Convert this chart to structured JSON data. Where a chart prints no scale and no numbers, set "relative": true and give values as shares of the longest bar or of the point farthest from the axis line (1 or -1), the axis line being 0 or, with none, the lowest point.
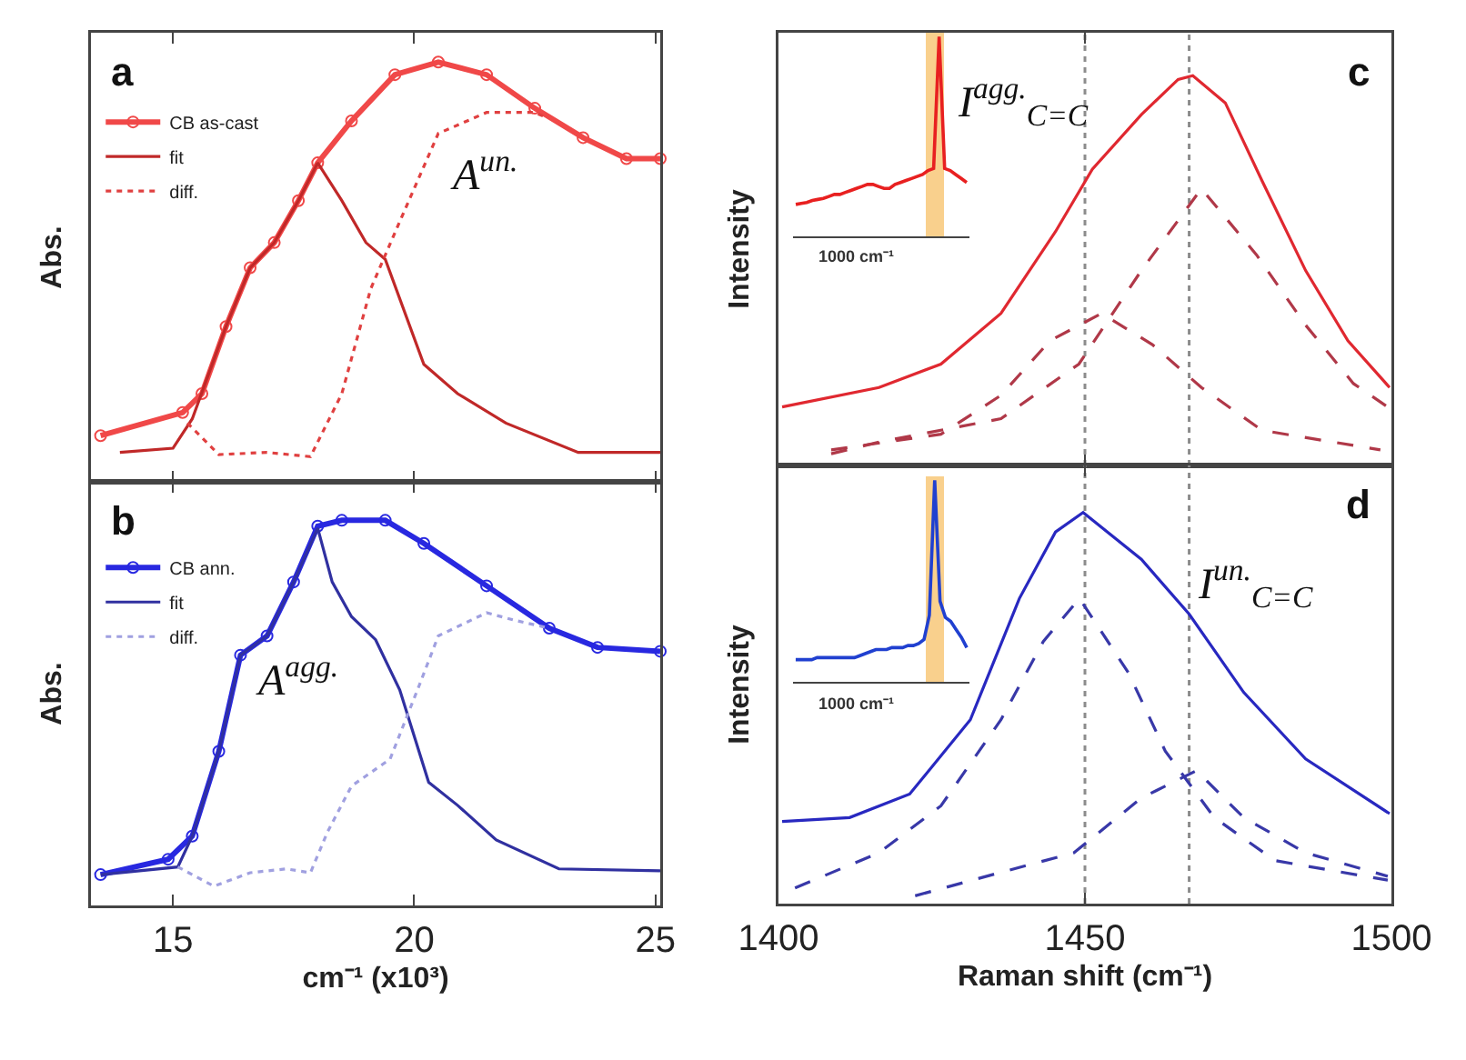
{
  "chart_data": [
    {
      "type": "line",
      "relative": true,
      "ylabel": "Abs.",
      "xlim": [
        13.3,
        25.1
      ],
      "xticks": [
        15,
        20,
        25
      ],
      "tick_labels": false,
      "legend": "top left",
      "annotations": [
        "a",
        "A$^{un.}$"
      ],
      "series": [
        {
          "name": "CB as-cast",
          "color": "#f04848",
          "marker": "circle",
          "line_style": "solid",
          "x": [
            13.5,
            15.2,
            15.6,
            16.1,
            16.6,
            17.1,
            17.6,
            18.0,
            18.7,
            19.6,
            20.5,
            21.5,
            22.5,
            23.5,
            24.4,
            25.1
          ],
          "values": [
            0.11,
            0.165,
            0.21,
            0.37,
            0.51,
            0.57,
            0.67,
            0.76,
            0.86,
            0.97,
            1.0,
            0.97,
            0.89,
            0.82,
            0.77,
            0.77
          ]
        },
        {
          "name": "fit",
          "color": "#c02828",
          "marker": "none",
          "line_style": "solid",
          "x": [
            13.9,
            15.0,
            15.4,
            16.1,
            16.6,
            17.1,
            17.6,
            18.0,
            18.5,
            19.0,
            19.4,
            20.2,
            20.9,
            21.9,
            23.4,
            25.1
          ],
          "values": [
            0.07,
            0.08,
            0.15,
            0.37,
            0.51,
            0.57,
            0.67,
            0.76,
            0.67,
            0.57,
            0.53,
            0.28,
            0.21,
            0.14,
            0.07,
            0.07
          ]
        },
        {
          "name": "diff.",
          "color": "#e04040",
          "marker": "none",
          "line_style": "dotted",
          "x": [
            15.3,
            15.95,
            16.95,
            17.85,
            18.5,
            19.1,
            19.7,
            20.5,
            21.5,
            22.5,
            22.7
          ],
          "values": [
            0.14,
            0.065,
            0.07,
            0.06,
            0.21,
            0.46,
            0.62,
            0.83,
            0.88,
            0.88,
            0.87
          ]
        }
      ]
    },
    {
      "type": "line",
      "relative": true,
      "ylabel": "Abs.",
      "xlabel": "cm⁻¹ (x10³)",
      "xlim": [
        13.3,
        25.1
      ],
      "xticks": [
        15,
        20,
        25
      ],
      "tick_labels": "x",
      "legend": "top left",
      "annotations": [
        "b",
        "A$^{agg.}$"
      ],
      "series": [
        {
          "name": "CB ann.",
          "color": "#2828e0",
          "marker": "circle",
          "line_style": "solid",
          "x": [
            13.5,
            14.9,
            15.4,
            15.95,
            16.4,
            16.95,
            17.5,
            18.0,
            18.5,
            19.4,
            20.2,
            21.5,
            22.8,
            23.8,
            25.1
          ],
          "values": [
            0.08,
            0.12,
            0.18,
            0.4,
            0.65,
            0.7,
            0.84,
            0.985,
            1.0,
            1.0,
            0.94,
            0.83,
            0.72,
            0.67,
            0.66
          ]
        },
        {
          "name": "fit",
          "color": "#3030a0",
          "marker": "none",
          "line_style": "solid",
          "x": [
            13.5,
            15.1,
            15.4,
            15.95,
            16.4,
            16.95,
            17.5,
            18.0,
            18.3,
            18.7,
            19.2,
            19.7,
            20.3,
            20.9,
            21.7,
            23.0,
            25.1
          ],
          "values": [
            0.08,
            0.1,
            0.18,
            0.4,
            0.65,
            0.7,
            0.84,
            0.98,
            0.84,
            0.75,
            0.69,
            0.56,
            0.32,
            0.26,
            0.17,
            0.095,
            0.09
          ]
        },
        {
          "name": "diff.",
          "color": "#a0a0e0",
          "marker": "none",
          "line_style": "dotted",
          "x": [
            15.1,
            15.85,
            16.6,
            17.35,
            17.85,
            18.2,
            18.7,
            19.5,
            20.1,
            20.5,
            21.5,
            22.1,
            22.8
          ],
          "values": [
            0.1,
            0.05,
            0.085,
            0.095,
            0.085,
            0.19,
            0.31,
            0.38,
            0.57,
            0.7,
            0.76,
            0.74,
            0.72
          ]
        }
      ]
    },
    {
      "type": "line",
      "relative": true,
      "ylabel": "Intensity",
      "xlim": [
        1400,
        1500
      ],
      "xticks": [
        1400,
        1450,
        1500
      ],
      "tick_labels": false,
      "annotations": [
        "c",
        "I$^{agg.}$$_{C=C}$"
      ],
      "ref_lines": [
        {
          "axis": "x",
          "value": 1450,
          "color": "#8c8c8c",
          "line_style": "dotted"
        },
        {
          "axis": "x",
          "value": 1467,
          "color": "#8c8c8c",
          "line_style": "dotted"
        }
      ],
      "series": [
        {
          "color": "#e02830",
          "line_style": "solid",
          "x": [
            1400.6,
            1416.4,
            1426.5,
            1436.3,
            1445.2,
            1451.2,
            1459.2,
            1465.2,
            1467.6,
            1472.9,
            1478.9,
            1486.0,
            1492.9,
            1499.7
          ],
          "values": [
            0.15,
            0.2,
            0.26,
            0.39,
            0.6,
            0.76,
            0.9,
            0.99,
            1.0,
            0.93,
            0.73,
            0.5,
            0.32,
            0.2
          ]
        },
        {
          "color": "#b03848",
          "line_style": "dashed",
          "x": [
            1408.6,
            1426.5,
            1436.3,
            1444.3,
            1452.7,
            1461,
            1469,
            1478.9,
            1498.2
          ],
          "values": [
            0.04,
            0.08,
            0.18,
            0.32,
            0.39,
            0.31,
            0.2,
            0.09,
            0.04
          ]
        },
        {
          "color": "#b03848",
          "line_style": "dashed",
          "x": [
            1408.6,
            1416.4,
            1436.3,
            1449,
            1459.2,
            1469,
            1478,
            1486,
            1493.8,
            1499.4
          ],
          "values": [
            0.03,
            0.06,
            0.12,
            0.26,
            0.5,
            0.71,
            0.54,
            0.36,
            0.21,
            0.15
          ]
        }
      ]
    },
    {
      "type": "line",
      "relative": true,
      "tick_labels": false,
      "annotations": [
        "1000 cm⁻¹"
      ],
      "categories": [
        null,
        null,
        null,
        null,
        null,
        null,
        null,
        null,
        null,
        null,
        null,
        null,
        null,
        null,
        null,
        null,
        null,
        null,
        null,
        null,
        null,
        null,
        null,
        null,
        null,
        null,
        null,
        null,
        null,
        null,
        null,
        null
      ],
      "series": [
        {
          "color": "#e82020",
          "line_style": "solid",
          "values": [
            0.16,
            0.165,
            0.17,
            0.18,
            0.185,
            0.19,
            0.2,
            0.21,
            0.21,
            0.22,
            0.23,
            0.24,
            0.25,
            0.26,
            0.26,
            0.25,
            0.24,
            0.24,
            0.26,
            0.27,
            0.28,
            0.29,
            0.3,
            0.31,
            0.33,
            0.34,
            1.0,
            0.34,
            0.33,
            0.31,
            0.29,
            0.27
          ]
        }
      ]
    },
    {
      "type": "line",
      "relative": true,
      "ylabel": "Intensity",
      "xlabel": "Raman shift (cm⁻¹)",
      "xlim": [
        1400,
        1500
      ],
      "xticks": [
        1400,
        1450,
        1500
      ],
      "tick_labels": "x",
      "annotations": [
        "d",
        "I$^{un.}$$_{C=C}$"
      ],
      "ref_lines": [
        {
          "axis": "x",
          "value": 1450,
          "color": "#8c8c8c",
          "line_style": "dotted"
        },
        {
          "axis": "x",
          "value": 1467,
          "color": "#8c8c8c",
          "line_style": "dotted"
        }
      ],
      "series": [
        {
          "color": "#2828c0",
          "line_style": "solid",
          "x": [
            1400.6,
            1411.6,
            1421.4,
            1431.3,
            1439.3,
            1445.2,
            1449.7,
            1459.2,
            1467,
            1475.9,
            1486,
            1499.7
          ],
          "values": [
            0.21,
            0.22,
            0.28,
            0.47,
            0.78,
            0.95,
            1.0,
            0.88,
            0.74,
            0.54,
            0.37,
            0.23
          ]
        },
        {
          "color": "#3838a8",
          "line_style": "dashed",
          "x": [
            1402.7,
            1416.4,
            1426.5,
            1436.3,
            1443.2,
            1449.1,
            1457.1,
            1463.1,
            1471.1,
            1481,
            1499.4
          ],
          "values": [
            0.04,
            0.13,
            0.25,
            0.47,
            0.67,
            0.78,
            0.59,
            0.39,
            0.22,
            0.11,
            0.06
          ]
        },
        {
          "color": "#3838a8",
          "line_style": "dashed",
          "x": [
            1422.3,
            1436.3,
            1448.2,
            1459.2,
            1468.2,
            1475.9,
            1486,
            1499.4
          ],
          "values": [
            0.02,
            0.08,
            0.13,
            0.27,
            0.34,
            0.22,
            0.13,
            0.07
          ]
        }
      ]
    },
    {
      "type": "line",
      "relative": true,
      "tick_labels": false,
      "annotations": [
        "1000 cm⁻¹"
      ],
      "categories": [
        null,
        null,
        null,
        null,
        null,
        null,
        null,
        null,
        null,
        null,
        null,
        null,
        null,
        null,
        null,
        null,
        null,
        null,
        null,
        null,
        null,
        null,
        null,
        null,
        null,
        null,
        null,
        null,
        null,
        null,
        null,
        null,
        null
      ],
      "series": [
        {
          "color": "#2040d0",
          "line_style": "solid",
          "values": [
            0.11,
            0.11,
            0.11,
            0.11,
            0.12,
            0.12,
            0.12,
            0.12,
            0.12,
            0.12,
            0.12,
            0.12,
            0.13,
            0.14,
            0.15,
            0.16,
            0.16,
            0.16,
            0.17,
            0.17,
            0.17,
            0.18,
            0.18,
            0.19,
            0.21,
            0.33,
            1.0,
            0.4,
            0.32,
            0.3,
            0.26,
            0.22,
            0.17
          ]
        }
      ]
    }
  ]
}
